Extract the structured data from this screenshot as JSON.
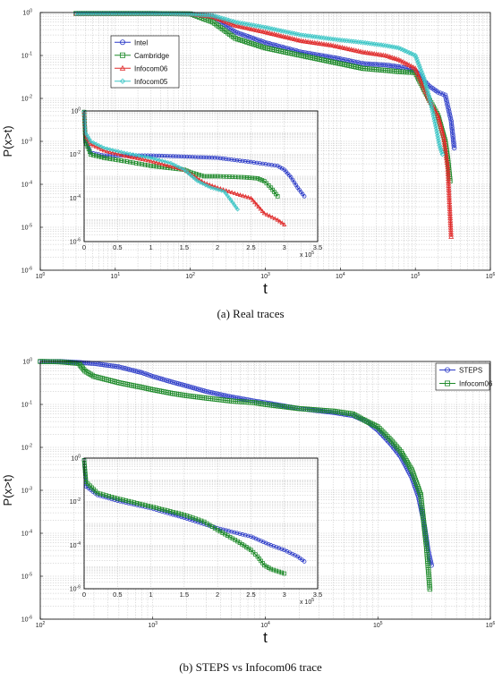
{
  "captions": {
    "a": "(a)  Real traces",
    "b": "(b)  STEPS vs Infocom06 trace"
  },
  "chart_data": [
    {
      "id": "a-main",
      "type": "line",
      "xscale": "log",
      "yscale": "log",
      "xlim": [
        1,
        1000000
      ],
      "ylim": [
        1e-06,
        1
      ],
      "xlabel": "t",
      "ylabel": "P(x>t)",
      "grid": true,
      "legend_position": "top-left",
      "x_tick_labels": [
        "10",
        "10",
        "10",
        "10",
        "10",
        "10",
        "10"
      ],
      "x_tick_exponents": [
        "0",
        "1",
        "2",
        "3",
        "4",
        "5",
        "6"
      ],
      "y_tick_labels": [
        "10",
        "10",
        "10",
        "10",
        "10",
        "10",
        "10"
      ],
      "y_tick_exponents": [
        "0",
        "-1",
        "-2",
        "-3",
        "-4",
        "-5",
        "-6"
      ],
      "series": [
        {
          "name": "Intel",
          "color": "#2d3cc8",
          "marker": "circle",
          "x": [
            3,
            10,
            30,
            100,
            200,
            400,
            1000,
            3000,
            8000,
            20000,
            40000,
            60000,
            100000,
            150000,
            200000,
            250000,
            300000,
            330000
          ],
          "y": [
            0.95,
            0.95,
            0.95,
            0.93,
            0.8,
            0.35,
            0.2,
            0.12,
            0.09,
            0.065,
            0.06,
            0.055,
            0.045,
            0.02,
            0.014,
            0.012,
            0.003,
            0.0007
          ]
        },
        {
          "name": "Cambridge",
          "color": "#1e8a2a",
          "marker": "square",
          "x": [
            3,
            10,
            30,
            100,
            200,
            400,
            1000,
            3000,
            8000,
            20000,
            40000,
            60000,
            100000,
            150000,
            200000,
            250000,
            270000,
            290000
          ],
          "y": [
            0.95,
            0.95,
            0.95,
            0.93,
            0.6,
            0.25,
            0.15,
            0.1,
            0.07,
            0.05,
            0.045,
            0.042,
            0.04,
            0.01,
            0.004,
            0.001,
            0.0004,
            0.00012
          ]
        },
        {
          "name": "Infocom06",
          "color": "#e02c2c",
          "marker": "triangle",
          "x": [
            3,
            10,
            30,
            100,
            200,
            400,
            1000,
            3000,
            8000,
            20000,
            40000,
            60000,
            100000,
            150000,
            200000,
            240000,
            270000,
            300000
          ],
          "y": [
            0.95,
            0.95,
            0.95,
            0.93,
            0.8,
            0.5,
            0.35,
            0.22,
            0.17,
            0.12,
            0.1,
            0.08,
            0.05,
            0.01,
            0.004,
            0.0012,
            0.00025,
            6e-06
          ]
        },
        {
          "name": "Infocom05",
          "color": "#3cc6c6",
          "marker": "diamond",
          "x": [
            3,
            10,
            30,
            100,
            200,
            400,
            1000,
            3000,
            8000,
            20000,
            40000,
            60000,
            100000,
            130000,
            160000,
            190000,
            210000,
            230000
          ],
          "y": [
            0.95,
            0.95,
            0.95,
            0.93,
            0.85,
            0.6,
            0.45,
            0.3,
            0.24,
            0.2,
            0.17,
            0.15,
            0.1,
            0.03,
            0.008,
            0.002,
            0.0008,
            0.0005
          ]
        }
      ]
    },
    {
      "id": "a-inset",
      "type": "line",
      "xscale": "linear",
      "yscale": "log",
      "xlim": [
        0,
        350000
      ],
      "ylim": [
        1e-06,
        1
      ],
      "x_tick_labels": [
        "0",
        "0.5",
        "1",
        "1.5",
        "2",
        "2.5",
        "3",
        "3.5"
      ],
      "x_multiplier": "x 10",
      "x_multiplier_exponent": "5",
      "y_tick_labels": [
        "10",
        "10",
        "10",
        "10"
      ],
      "y_tick_exponents": [
        "0",
        "-2",
        "-4",
        "-6"
      ],
      "series": [
        {
          "name": "Intel",
          "color": "#2d3cc8",
          "marker": "circle",
          "x": [
            0,
            2000,
            10000,
            30000,
            60000,
            100000,
            150000,
            200000,
            250000,
            290000,
            300000,
            310000,
            320000,
            330000
          ],
          "y": [
            0.9,
            0.05,
            0.012,
            0.009,
            0.009,
            0.009,
            0.008,
            0.007,
            0.0045,
            0.003,
            0.002,
            0.0009,
            0.0003,
            0.00012
          ]
        },
        {
          "name": "Cambridge",
          "color": "#1e8a2a",
          "marker": "square",
          "x": [
            0,
            2000,
            10000,
            30000,
            60000,
            100000,
            150000,
            160000,
            180000,
            200000,
            240000,
            260000,
            270000,
            280000,
            290000
          ],
          "y": [
            0.9,
            0.04,
            0.01,
            0.007,
            0.005,
            0.003,
            0.002,
            0.0015,
            0.001,
            0.001,
            0.0009,
            0.0008,
            0.0006,
            0.0003,
            0.00012
          ]
        },
        {
          "name": "Infocom06",
          "color": "#e02c2c",
          "marker": "triangle",
          "x": [
            0,
            2000,
            10000,
            30000,
            60000,
            100000,
            150000,
            180000,
            200000,
            230000,
            250000,
            270000,
            290000,
            300000
          ],
          "y": [
            0.9,
            0.08,
            0.03,
            0.015,
            0.009,
            0.005,
            0.002,
            0.0005,
            0.0003,
            0.00015,
            0.0001,
            2e-05,
            1e-05,
            6e-06
          ]
        },
        {
          "name": "Infocom05",
          "color": "#3cc6c6",
          "marker": "diamond",
          "x": [
            0,
            2000,
            10000,
            30000,
            60000,
            100000,
            130000,
            150000,
            170000,
            190000,
            210000,
            220000,
            230000
          ],
          "y": [
            0.9,
            0.1,
            0.04,
            0.02,
            0.012,
            0.007,
            0.004,
            0.002,
            0.0006,
            0.0003,
            0.0002,
            8e-05,
            3e-05
          ]
        }
      ]
    },
    {
      "id": "b-main",
      "type": "line",
      "xscale": "log",
      "yscale": "log",
      "xlim": [
        100,
        1000000
      ],
      "ylim": [
        1e-06,
        1
      ],
      "xlabel": "t",
      "ylabel": "P(x>t)",
      "grid": true,
      "legend_position": "top-right",
      "x_tick_labels": [
        "10",
        "10",
        "10",
        "10",
        "10"
      ],
      "x_tick_exponents": [
        "2",
        "3",
        "4",
        "5",
        "6"
      ],
      "y_tick_labels": [
        "10",
        "10",
        "10",
        "10",
        "10",
        "10",
        "10"
      ],
      "y_tick_exponents": [
        "0",
        "-1",
        "-2",
        "-3",
        "-4",
        "-5",
        "-6"
      ],
      "series": [
        {
          "name": "STEPS",
          "color": "#2d3cc8",
          "marker": "circle",
          "x": [
            100,
            150,
            220,
            300,
            500,
            800,
            1000,
            1500,
            2000,
            3000,
            5000,
            8000,
            10000,
            20000,
            40000,
            60000,
            80000,
            100000,
            130000,
            160000,
            200000,
            230000,
            260000,
            280000,
            300000
          ],
          "y": [
            1,
            1,
            0.95,
            0.9,
            0.75,
            0.55,
            0.45,
            0.33,
            0.27,
            0.2,
            0.15,
            0.12,
            0.11,
            0.08,
            0.065,
            0.055,
            0.04,
            0.025,
            0.012,
            0.006,
            0.002,
            0.0007,
            0.00015,
            4e-05,
            1.8e-05
          ]
        },
        {
          "name": "Infocom06",
          "color": "#1e8a2a",
          "marker": "square",
          "x": [
            100,
            150,
            220,
            250,
            300,
            500,
            800,
            1000,
            1500,
            2000,
            3000,
            5000,
            8000,
            10000,
            20000,
            40000,
            60000,
            80000,
            100000,
            130000,
            160000,
            200000,
            240000,
            270000,
            290000
          ],
          "y": [
            1,
            0.98,
            0.9,
            0.6,
            0.45,
            0.32,
            0.25,
            0.22,
            0.18,
            0.16,
            0.14,
            0.12,
            0.11,
            0.1,
            0.08,
            0.07,
            0.06,
            0.04,
            0.03,
            0.015,
            0.008,
            0.003,
            0.0008,
            5e-05,
            5e-06
          ]
        }
      ]
    },
    {
      "id": "b-inset",
      "type": "line",
      "xscale": "linear",
      "yscale": "log",
      "xlim": [
        0,
        350000
      ],
      "ylim": [
        1e-06,
        1
      ],
      "x_tick_labels": [
        "0",
        "0.5",
        "1",
        "1.5",
        "2",
        "2.5",
        "3",
        "3.5"
      ],
      "x_multiplier": "x 10",
      "x_multiplier_exponent": "5",
      "y_tick_labels": [
        "10",
        "10",
        "10",
        "10"
      ],
      "y_tick_exponents": [
        "0",
        "-2",
        "-4",
        "-6"
      ],
      "series": [
        {
          "name": "STEPS",
          "color": "#2d3cc8",
          "marker": "circle",
          "x": [
            0,
            3000,
            20000,
            50000,
            100000,
            150000,
            200000,
            250000,
            280000,
            300000,
            320000,
            330000
          ],
          "y": [
            0.8,
            0.05,
            0.02,
            0.011,
            0.005,
            0.0018,
            0.0006,
            0.00025,
            0.0001,
            6e-05,
            3e-05,
            1.8e-05
          ]
        },
        {
          "name": "Infocom06",
          "color": "#1e8a2a",
          "marker": "square",
          "x": [
            0,
            3000,
            20000,
            50000,
            100000,
            150000,
            180000,
            200000,
            230000,
            250000,
            260000,
            270000,
            280000,
            300000
          ],
          "y": [
            0.8,
            0.08,
            0.025,
            0.014,
            0.006,
            0.0025,
            0.0012,
            0.0005,
            0.00015,
            6e-05,
            3e-05,
            1.2e-05,
            8e-06,
            5e-06
          ]
        }
      ]
    }
  ]
}
